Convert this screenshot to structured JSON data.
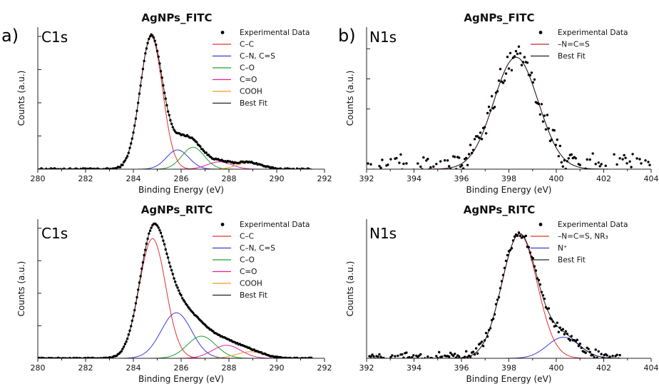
{
  "panel_letters": [
    "a)",
    "b)"
  ],
  "chart_data": [
    {
      "type": "line",
      "title": "AgNPs_FITC",
      "core_label": "C1s",
      "xlabel": "Binding Energy (eV)",
      "ylabel": "Counts (a.u.)",
      "xlim": [
        280,
        292
      ],
      "ylim": [
        0,
        1.07
      ],
      "x_ticks": [
        "280",
        "282",
        "284",
        "286",
        "288",
        "290",
        "292"
      ],
      "y_ticks_unlabeled": [
        0.25,
        0.5,
        0.75,
        1.0
      ],
      "grid": false,
      "legend_position": "top-right",
      "data_range": [
        280,
        291.5
      ],
      "noise": 0.006,
      "legend": [
        {
          "name": "Experimental Data",
          "marker": "dot",
          "color": "#000000"
        },
        {
          "name": "C–C",
          "color": "#e8302c"
        },
        {
          "name": "C–N, C=S",
          "color": "#3a3ad6"
        },
        {
          "name": "C–O",
          "color": "#1f9e2c"
        },
        {
          "name": "C=O",
          "color": "#e0209a"
        },
        {
          "name": "COOH",
          "color": "#f0962a"
        },
        {
          "name": "Best Fit",
          "color": "#222222"
        }
      ],
      "components": [
        {
          "center": 284.75,
          "amplitude": 1.0,
          "fwhm": 1.1
        },
        {
          "center": 285.85,
          "amplitude": 0.145,
          "fwhm": 1.1
        },
        {
          "center": 286.5,
          "amplitude": 0.165,
          "fwhm": 1.1
        },
        {
          "center": 287.6,
          "amplitude": 0.055,
          "fwhm": 1.2
        },
        {
          "center": 288.85,
          "amplitude": 0.05,
          "fwhm": 1.2
        }
      ],
      "best_fit": true
    },
    {
      "type": "scatter",
      "title": "AgNPs_FITC",
      "core_label": "N1s",
      "xlabel": "Binding Energy (eV)",
      "ylabel": "Counts (a.u.)",
      "xlim": [
        392,
        404
      ],
      "ylim": [
        0,
        1.18
      ],
      "x_ticks": [
        "392",
        "394",
        "396",
        "398",
        "400",
        "402",
        "404"
      ],
      "y_ticks_unlabeled": [
        0.5,
        0.75,
        1.0
      ],
      "grid": false,
      "legend_position": "top-right",
      "data_range": [
        392,
        404
      ],
      "noise": 0.08,
      "legend": [
        {
          "name": "Experimental Data",
          "marker": "dot",
          "color": "#000000"
        },
        {
          "name": "–N=C=S",
          "color": "#c0262a"
        },
        {
          "name": "Best Fit",
          "color": "#222222"
        }
      ],
      "components": [
        {
          "center": 398.3,
          "amplitude": 0.93,
          "fwhm": 2.2
        }
      ],
      "best_fit": true
    },
    {
      "type": "line",
      "title": "AgNPs_RITC",
      "core_label": "C1s",
      "xlabel": "Binding Energy (eV)",
      "ylabel": "Counts (a.u.)",
      "xlim": [
        280,
        292
      ],
      "ylim": [
        0,
        1.07
      ],
      "x_ticks": [
        "280",
        "282",
        "284",
        "286",
        "288",
        "290",
        "292"
      ],
      "y_ticks_unlabeled": [
        0.25,
        0.5,
        0.75,
        1.0
      ],
      "grid": false,
      "legend_position": "top-right",
      "data_range": [
        280,
        291.5
      ],
      "noise": 0.004,
      "legend": [
        {
          "name": "Experimental Data",
          "marker": "dot",
          "color": "#000000"
        },
        {
          "name": "C–C",
          "color": "#e8302c"
        },
        {
          "name": "C–N, C=S",
          "color": "#3a3ad6"
        },
        {
          "name": "C–O",
          "color": "#1f9e2c"
        },
        {
          "name": "C=O",
          "color": "#e0209a"
        },
        {
          "name": "COOH",
          "color": "#f0962a"
        },
        {
          "name": "Best Fit",
          "color": "#222222"
        }
      ],
      "components": [
        {
          "center": 284.8,
          "amplitude": 0.92,
          "fwhm": 1.3
        },
        {
          "center": 285.8,
          "amplitude": 0.35,
          "fwhm": 1.5
        },
        {
          "center": 286.85,
          "amplitude": 0.17,
          "fwhm": 1.4
        },
        {
          "center": 287.9,
          "amplitude": 0.1,
          "fwhm": 1.4
        },
        {
          "center": 288.9,
          "amplitude": 0.05,
          "fwhm": 1.4
        }
      ],
      "best_fit": true
    },
    {
      "type": "scatter",
      "title": "AgNPs_RITC",
      "core_label": "N1s",
      "xlabel": "Binding Energy (eV)",
      "ylabel": "Counts (a.u.)",
      "xlim": [
        392,
        404
      ],
      "ylim": [
        0,
        1.12
      ],
      "x_ticks": [
        "392",
        "394",
        "396",
        "398",
        "400",
        "402",
        "404"
      ],
      "y_ticks_unlabeled": [],
      "grid": false,
      "legend_position": "top-right",
      "data_range": [
        392,
        402.8
      ],
      "noise": 0.03,
      "legend": [
        {
          "name": "Experimental Data",
          "marker": "dot",
          "color": "#000000"
        },
        {
          "name": "–N=C=S, NR₃",
          "color": "#e8302c"
        },
        {
          "name": "N⁺",
          "color": "#3a3ad6"
        },
        {
          "name": "Best Fit",
          "color": "#222222"
        }
      ],
      "components": [
        {
          "center": 398.45,
          "amplitude": 1.0,
          "fwhm": 1.75
        },
        {
          "center": 400.3,
          "amplitude": 0.17,
          "fwhm": 1.6
        }
      ],
      "best_fit": true
    }
  ]
}
